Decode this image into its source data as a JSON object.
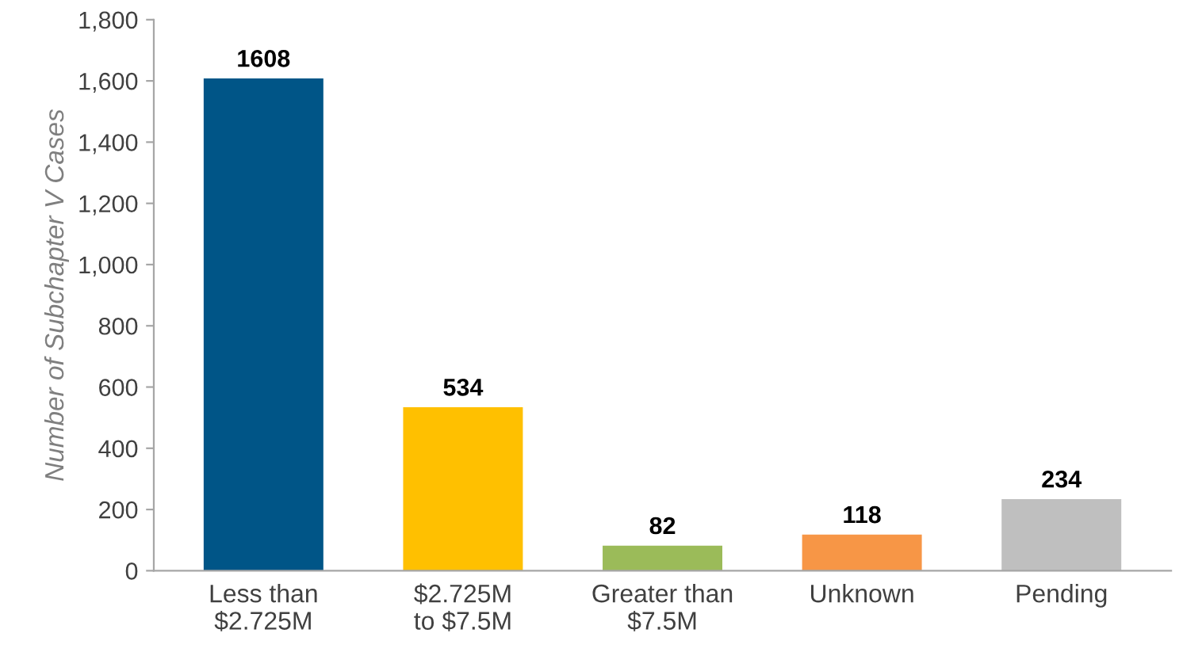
{
  "chart_data": {
    "type": "bar",
    "ylabel": "Number of Subchapter V Cases",
    "categories": [
      "Less than\n$2.725M",
      "$2.725M\nto $7.5M",
      "Greater than\n$7.5M",
      "Unknown",
      "Pending"
    ],
    "values": [
      1608,
      534,
      82,
      118,
      234
    ],
    "colors": [
      "#005587",
      "#ffc000",
      "#9bbb59",
      "#f79646",
      "#bfbfbf"
    ],
    "ylim": [
      0,
      1800
    ],
    "yticks": [
      0,
      200,
      400,
      600,
      800,
      {
        "value": 1000,
        "label": "1,000"
      },
      {
        "value": 1200,
        "label": "1,200"
      },
      {
        "value": 1400,
        "label": "1,400"
      },
      {
        "value": 1600,
        "label": "1,600"
      },
      {
        "value": 1800,
        "label": "1,800"
      }
    ],
    "data_labels": true,
    "grid": false,
    "legend": false
  }
}
